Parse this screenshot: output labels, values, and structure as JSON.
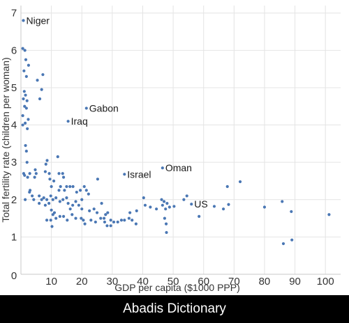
{
  "chart_data": {
    "type": "scatter",
    "xlabel": "GDP per capita ($1000 PPP)",
    "ylabel": "Total fertility rate (children per woman)",
    "xlim": [
      0,
      105
    ],
    "ylim": [
      0,
      7.2
    ],
    "xticks": [
      10,
      20,
      30,
      40,
      50,
      60,
      70,
      80,
      90,
      100
    ],
    "yticks": [
      1,
      2,
      3,
      4,
      5,
      6,
      7
    ],
    "origin_label": "0",
    "grid": true,
    "point_color": "#4a77b4",
    "annotations": [
      {
        "label": "Niger",
        "x": 0.8,
        "y": 6.8
      },
      {
        "label": "Gabon",
        "x": 21.5,
        "y": 4.45
      },
      {
        "label": "Iraq",
        "x": 15.5,
        "y": 4.1
      },
      {
        "label": "Israel",
        "x": 34,
        "y": 2.68
      },
      {
        "label": "Oman",
        "x": 46.5,
        "y": 2.85
      },
      {
        "label": "US",
        "x": 56,
        "y": 1.88
      }
    ],
    "points": [
      [
        0.8,
        6.8
      ],
      [
        0.6,
        6.05
      ],
      [
        1.3,
        6.0
      ],
      [
        1.6,
        5.75
      ],
      [
        2.5,
        5.6
      ],
      [
        1.0,
        5.45
      ],
      [
        1.8,
        5.3
      ],
      [
        1.1,
        4.9
      ],
      [
        1.5,
        4.8
      ],
      [
        0.8,
        4.7
      ],
      [
        2.0,
        4.65
      ],
      [
        1.2,
        4.5
      ],
      [
        1.8,
        4.45
      ],
      [
        0.6,
        4.25
      ],
      [
        1.4,
        4.05
      ],
      [
        2.4,
        4.15
      ],
      [
        2.1,
        3.9
      ],
      [
        0.6,
        4.0
      ],
      [
        1.5,
        3.45
      ],
      [
        1.8,
        3.3
      ],
      [
        2.0,
        3.0
      ],
      [
        0.9,
        2.7
      ],
      [
        1.2,
        2.65
      ],
      [
        2.2,
        2.6
      ],
      [
        2.9,
        2.7
      ],
      [
        4.7,
        2.8
      ],
      [
        4.5,
        2.6
      ],
      [
        5.0,
        2.7
      ],
      [
        3.0,
        2.25
      ],
      [
        3.7,
        2.1
      ],
      [
        4.2,
        2.0
      ],
      [
        6.0,
        2.1
      ],
      [
        5.4,
        5.2
      ],
      [
        7.2,
        5.35
      ],
      [
        6.8,
        4.95
      ],
      [
        6.2,
        4.7
      ],
      [
        8.0,
        2.75
      ],
      [
        8.2,
        2.95
      ],
      [
        8.6,
        3.05
      ],
      [
        9.3,
        2.7
      ],
      [
        9.5,
        2.55
      ],
      [
        10.0,
        2.35
      ],
      [
        10.8,
        2.5
      ],
      [
        12.1,
        3.15
      ],
      [
        12.5,
        2.7
      ],
      [
        13.7,
        2.7
      ],
      [
        14.0,
        2.6
      ],
      [
        11.5,
        2.05
      ],
      [
        12.5,
        2.25
      ],
      [
        13.0,
        2.35
      ],
      [
        14.3,
        2.25
      ],
      [
        15.0,
        2.35
      ],
      [
        16.1,
        2.35
      ],
      [
        17.1,
        2.35
      ],
      [
        18.3,
        2.2
      ],
      [
        19.5,
        2.25
      ],
      [
        20.0,
        2.0
      ],
      [
        20.8,
        2.35
      ],
      [
        21.5,
        2.25
      ],
      [
        22.2,
        2.15
      ],
      [
        25.2,
        2.55
      ],
      [
        26.5,
        1.9
      ],
      [
        1.4,
        2.0
      ],
      [
        2.8,
        2.2
      ],
      [
        6.0,
        1.9
      ],
      [
        6.8,
        2.0
      ],
      [
        7.5,
        2.05
      ],
      [
        8.0,
        1.85
      ],
      [
        8.5,
        2.0
      ],
      [
        9.2,
        1.9
      ],
      [
        9.8,
        2.1
      ],
      [
        10.5,
        2.0
      ],
      [
        12.8,
        1.95
      ],
      [
        13.8,
        2.0
      ],
      [
        15.0,
        2.05
      ],
      [
        15.5,
        1.9
      ],
      [
        16.2,
        1.75
      ],
      [
        17.0,
        1.85
      ],
      [
        18.0,
        1.95
      ],
      [
        19.0,
        1.85
      ],
      [
        20.0,
        1.75
      ],
      [
        22.5,
        1.7
      ],
      [
        24.0,
        1.75
      ],
      [
        25.0,
        1.65
      ],
      [
        27.3,
        1.5
      ],
      [
        27.8,
        1.6
      ],
      [
        28.5,
        1.65
      ],
      [
        29.5,
        1.45
      ],
      [
        30.5,
        1.4
      ],
      [
        31.8,
        1.4
      ],
      [
        33.0,
        1.45
      ],
      [
        34.0,
        1.45
      ],
      [
        35.8,
        1.65
      ],
      [
        35.5,
        1.5
      ],
      [
        36.5,
        1.45
      ],
      [
        37.8,
        1.35
      ],
      [
        8.5,
        1.45
      ],
      [
        9.8,
        1.45
      ],
      [
        10.5,
        1.6
      ],
      [
        11.5,
        1.5
      ],
      [
        12.8,
        1.55
      ],
      [
        14.0,
        1.55
      ],
      [
        15.2,
        1.45
      ],
      [
        16.8,
        1.6
      ],
      [
        18.0,
        1.5
      ],
      [
        19.8,
        1.5
      ],
      [
        20.5,
        1.45
      ],
      [
        21.0,
        1.35
      ],
      [
        23.0,
        1.45
      ],
      [
        24.5,
        1.4
      ],
      [
        26.2,
        1.5
      ],
      [
        27.5,
        1.4
      ],
      [
        28.3,
        1.3
      ],
      [
        29.5,
        1.3
      ],
      [
        10.2,
        1.28
      ],
      [
        10.0,
        1.72
      ],
      [
        11.0,
        1.65
      ],
      [
        38.0,
        1.7
      ],
      [
        40.3,
        2.05
      ],
      [
        40.8,
        1.85
      ],
      [
        42.5,
        1.8
      ],
      [
        44.5,
        1.75
      ],
      [
        46.2,
        2.0
      ],
      [
        46.5,
        1.85
      ],
      [
        47.0,
        1.95
      ],
      [
        47.5,
        1.75
      ],
      [
        48.0,
        1.9
      ],
      [
        48.8,
        1.8
      ],
      [
        47.2,
        1.5
      ],
      [
        47.7,
        1.35
      ],
      [
        47.8,
        1.12
      ],
      [
        50.3,
        1.82
      ],
      [
        53.5,
        2.0
      ],
      [
        54.5,
        2.1
      ],
      [
        58.5,
        1.55
      ],
      [
        63.5,
        1.82
      ],
      [
        66.5,
        1.75
      ],
      [
        67.8,
        2.35
      ],
      [
        68.2,
        1.87
      ],
      [
        72.0,
        2.48
      ],
      [
        80.0,
        1.8
      ],
      [
        85.8,
        1.95
      ],
      [
        86.2,
        0.82
      ],
      [
        88.8,
        1.68
      ],
      [
        89.0,
        0.92
      ],
      [
        101.2,
        1.6
      ]
    ]
  },
  "footer": {
    "text": "Abadis Dictionary",
    "background": "#000000",
    "color": "#ffffff"
  }
}
